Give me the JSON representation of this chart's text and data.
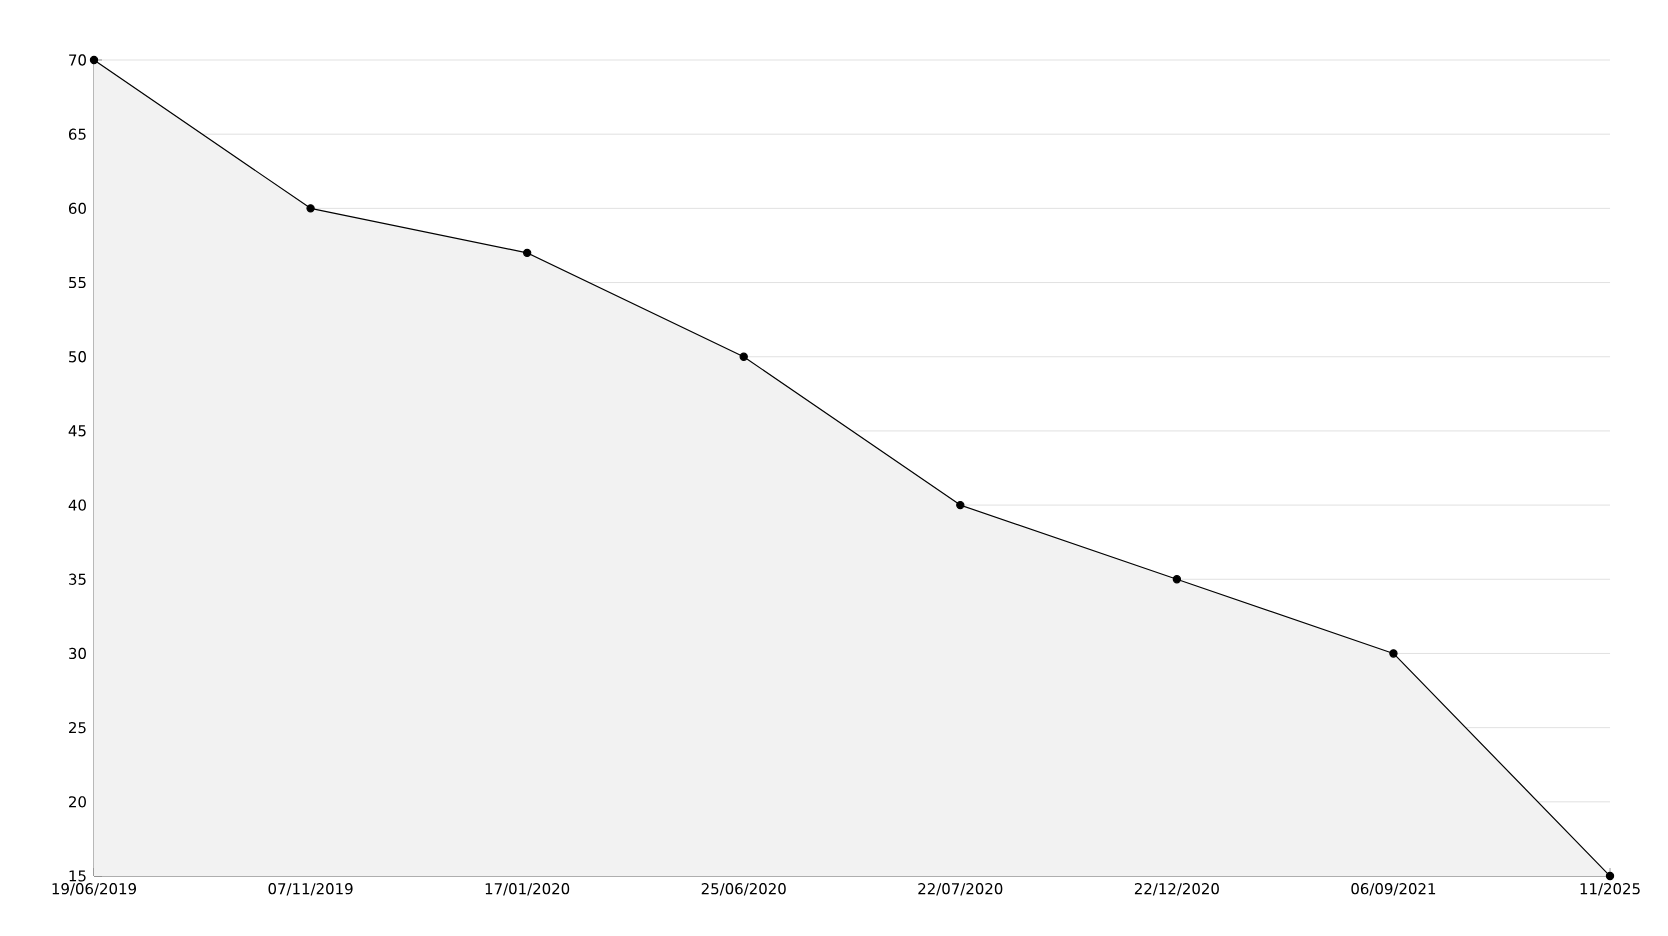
{
  "chart_data": {
    "type": "area",
    "categories": [
      "19/06/2019",
      "07/11/2019",
      "17/01/2020",
      "25/06/2020",
      "22/07/2020",
      "22/12/2020",
      "06/09/2021",
      "11/2025"
    ],
    "values": [
      70,
      60,
      57,
      50,
      40,
      35,
      30,
      15
    ],
    "color": "#f2f2f2",
    "ylim": [
      15,
      70
    ],
    "yticks": [
      15,
      20,
      25,
      30,
      35,
      40,
      45,
      50,
      55,
      60,
      65,
      70
    ],
    "grid": "y",
    "marker": "circle",
    "line_style": "solid"
  }
}
